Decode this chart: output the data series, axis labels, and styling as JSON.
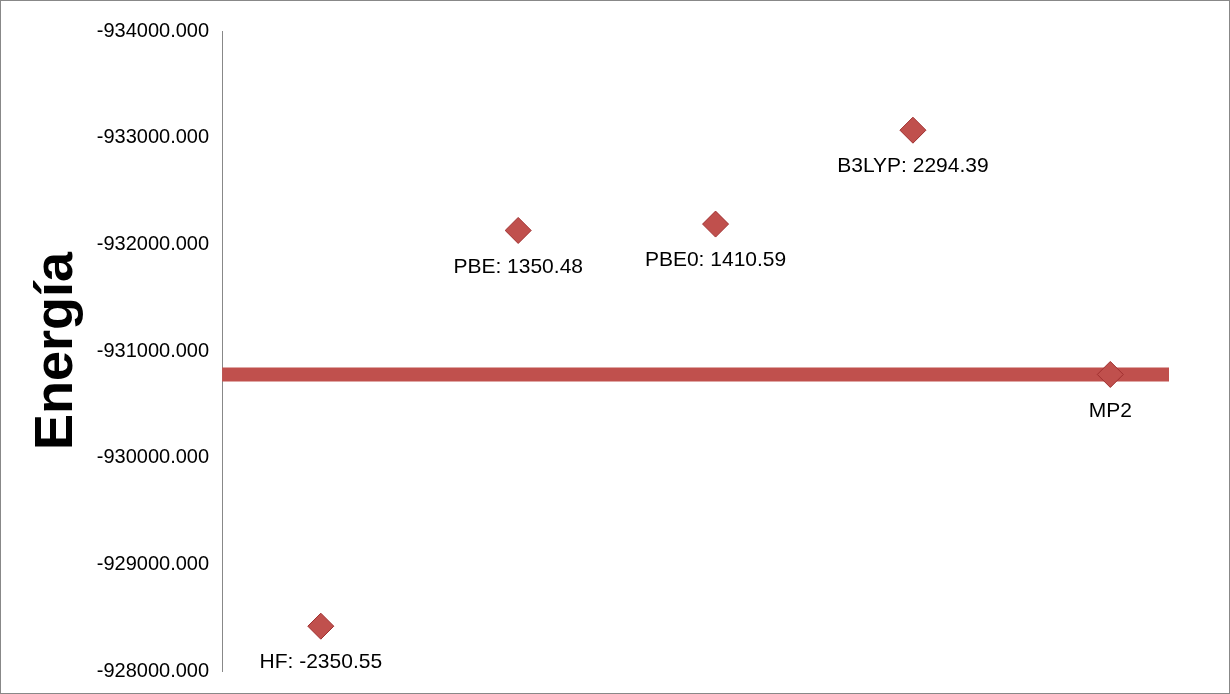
{
  "chart_data": {
    "type": "scatter",
    "ylabel": "Energía",
    "categories": [
      null,
      null,
      null,
      null,
      null
    ],
    "series": [
      {
        "color": "#c0504d",
        "values": [
          -928420,
          -932130,
          -932190,
          -933070,
          -930780
        ]
      }
    ],
    "annotations": [
      {
        "text": "HF: -2350.55",
        "y": -928420
      },
      {
        "text": "PBE: 1350.48",
        "y": -932130
      },
      {
        "text": "PBE0: 1410.59",
        "y": -932190
      },
      {
        "text": "B3LYP: 2294.39",
        "y": -933070
      },
      {
        "text": "MP2",
        "y": -930780
      }
    ],
    "ylim": [
      -928000,
      -934000
    ],
    "yticks": [
      {
        "value": -928000,
        "label": "-928000.000"
      },
      {
        "value": -929000,
        "label": "-929000.000"
      },
      {
        "value": -930000,
        "label": "-930000.000"
      },
      {
        "value": -931000,
        "label": "-931000.000"
      },
      {
        "value": -932000,
        "label": "-932000.000"
      },
      {
        "value": -933000,
        "label": "-933000.000"
      },
      {
        "value": -934000,
        "label": "-934000.000"
      }
    ],
    "ref_lines": [
      {
        "axis": "y",
        "value": -930780,
        "color": "#c0504d"
      }
    ],
    "marker": "diamond",
    "grid": false,
    "legend": false,
    "tick_labels": "y"
  }
}
